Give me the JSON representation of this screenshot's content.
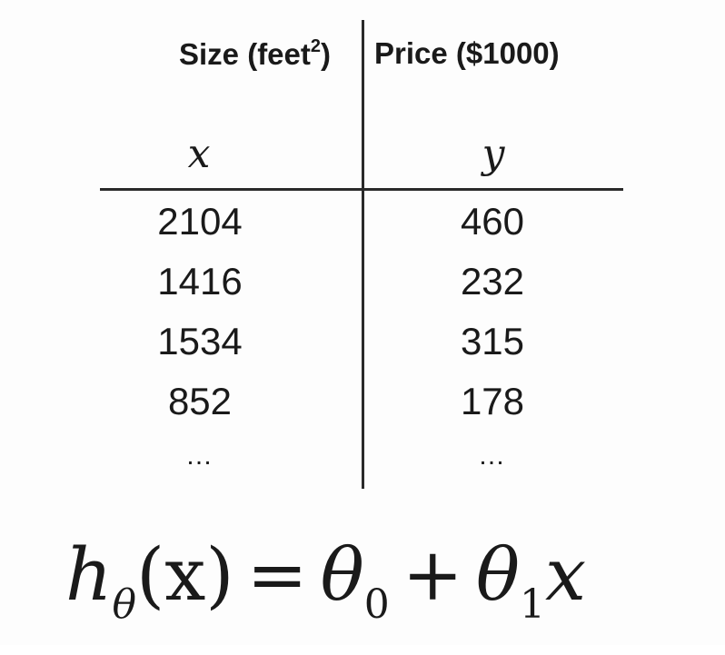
{
  "table": {
    "columns": [
      {
        "header_text": "Size (feet",
        "header_sup": "2",
        "header_close": ")",
        "variable": "x",
        "values": [
          "2104",
          "1416",
          "1534",
          "852"
        ],
        "ellipsis": "…"
      },
      {
        "header_text": "Price ($1000)",
        "variable": "y",
        "values": [
          "460",
          "232",
          "315",
          "178"
        ],
        "ellipsis": "…"
      }
    ]
  },
  "formula": {
    "h": "h",
    "h_sub": "θ",
    "arg": "(x)",
    "equals": "=",
    "theta": "θ",
    "sub0": "0",
    "plus": "+",
    "sub1": "1",
    "x": "x"
  }
}
